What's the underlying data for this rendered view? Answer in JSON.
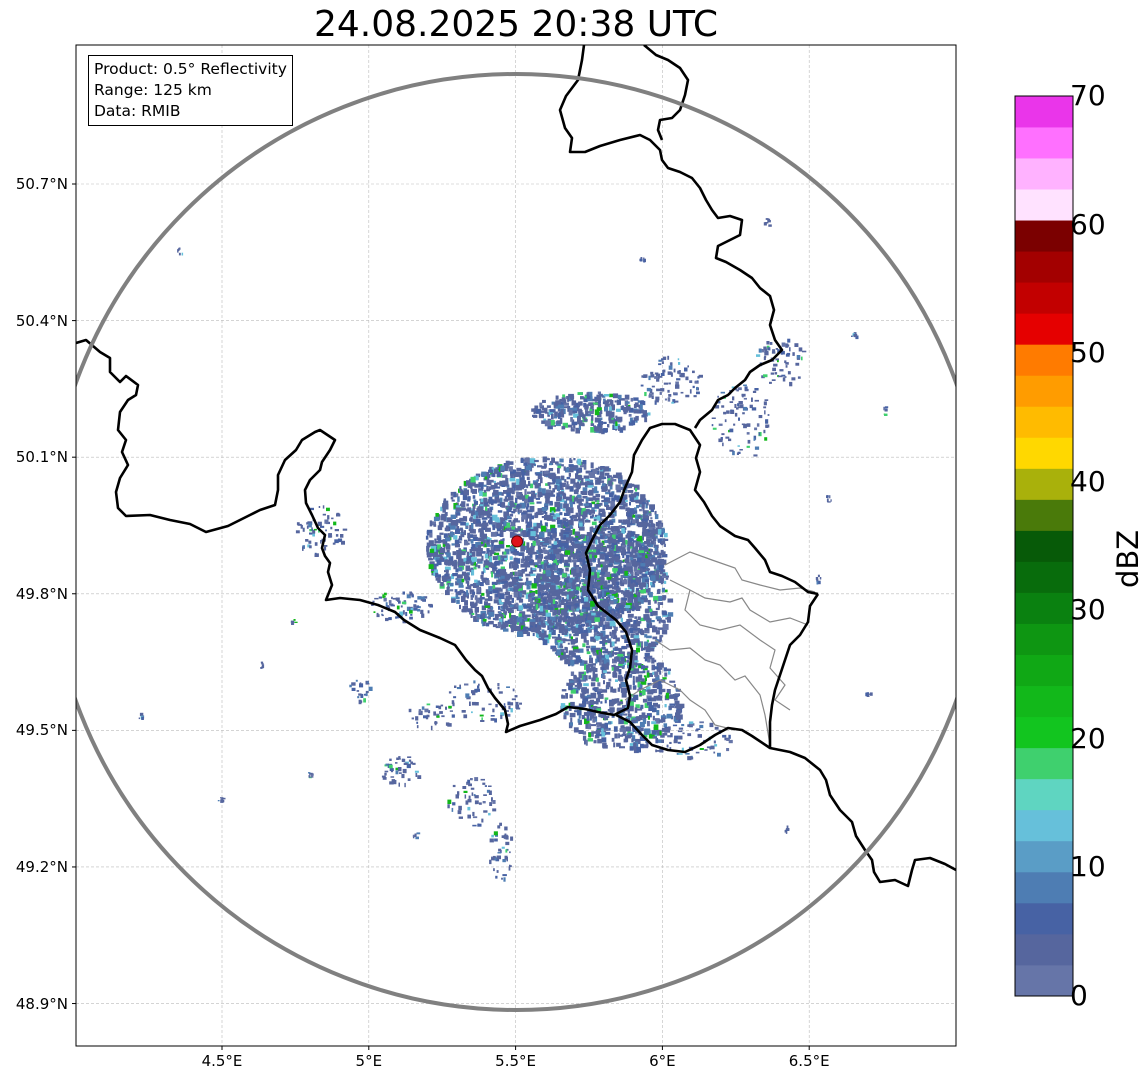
{
  "title": "24.08.2025 20:38 UTC",
  "info_box": {
    "product": "Product: 0.5° Reflectivity",
    "range": "Range: 125 km",
    "data": "Data: RMIB"
  },
  "map": {
    "lon_range": [
      4.0,
      7.0
    ],
    "lat_range": [
      48.8,
      51.0
    ],
    "radar_site": {
      "lon": 5.505,
      "lat": 49.915,
      "marker": "red-dot"
    },
    "range_ring_km": 125,
    "grid": true,
    "x_ticks": [
      {
        "value": 4.5,
        "label": "4.5°E"
      },
      {
        "value": 5.0,
        "label": "5°E"
      },
      {
        "value": 5.5,
        "label": "5.5°E"
      },
      {
        "value": 6.0,
        "label": "6°E"
      },
      {
        "value": 6.5,
        "label": "6.5°E"
      }
    ],
    "y_ticks": [
      {
        "value": 50.7,
        "label": "50.7°N"
      },
      {
        "value": 50.4,
        "label": "50.4°N"
      },
      {
        "value": 50.1,
        "label": "50.1°N"
      },
      {
        "value": 49.8,
        "label": "49.8°N"
      },
      {
        "value": 49.5,
        "label": "49.5°N"
      },
      {
        "value": 49.2,
        "label": "49.2°N"
      },
      {
        "value": 48.9,
        "label": "48.9°N"
      }
    ],
    "colors": {
      "border": "#000000",
      "province_border": "#888888",
      "range_ring": "#808080",
      "radar_marker": "#e0121a"
    }
  },
  "colorbar": {
    "label": "dBZ",
    "min": 0,
    "max": 70,
    "tick_labels": [
      {
        "value": 0,
        "label": "0"
      },
      {
        "value": 10,
        "label": "10"
      },
      {
        "value": 20,
        "label": "20"
      },
      {
        "value": 30,
        "label": "30"
      },
      {
        "value": 40,
        "label": "40"
      },
      {
        "value": 50,
        "label": "50"
      },
      {
        "value": 60,
        "label": "60"
      },
      {
        "value": 70,
        "label": "70"
      }
    ],
    "colors": [
      "#6675a8",
      "#56669e",
      "#4762a4",
      "#4e7db3",
      "#5a9dc6",
      "#66c0da",
      "#5fd5c1",
      "#3fd06e",
      "#12c51f",
      "#12b81a",
      "#10a815",
      "#0e9612",
      "#0a8110",
      "#086c0c",
      "#075a08",
      "#4a7a0a",
      "#a9b10b",
      "#ffd800",
      "#ffbb00",
      "#ff9c00",
      "#ff7b00",
      "#e50000",
      "#c20000",
      "#a30000",
      "#7b0000",
      "#ffe2ff",
      "#ffb2ff",
      "#ff70ff",
      "#ea35ea"
    ]
  }
}
